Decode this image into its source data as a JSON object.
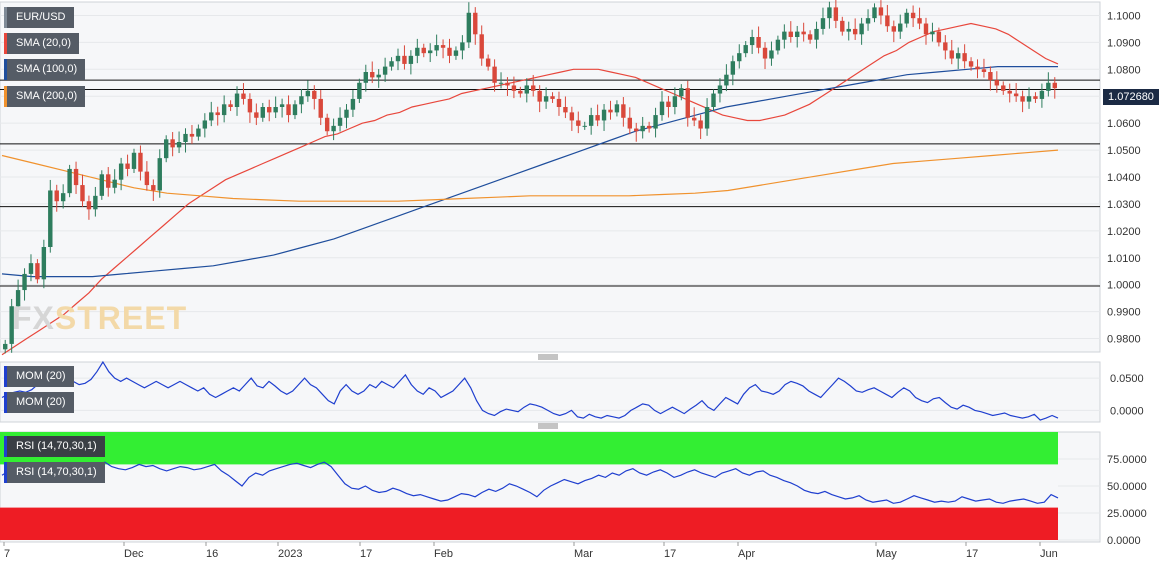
{
  "legends": {
    "pair": "EUR/USD",
    "sma20": "SMA (20,0)",
    "sma100": "SMA (100,0)",
    "sma200": "SMA (200,0)",
    "mom1": "MOM (20)",
    "mom2": "MOM (20)",
    "rsi1": "RSI (14,70,30,1)",
    "rsi2": "RSI (14,70,30,1)"
  },
  "price_tag": "1.072680",
  "logo": {
    "fx": "FX",
    "street": "STREET"
  },
  "colors": {
    "up": "#2e7d5e",
    "down": "#d9483b",
    "sma20": "#e8473c",
    "sma100": "#1f4e9c",
    "sma200": "#f0922e",
    "mom": "#1f3fcf",
    "rsi": "#1f3fcf",
    "rsi_over": "#33ee33",
    "rsi_under": "#ee1c24"
  },
  "chart_data": [
    {
      "type": "candlestick",
      "title": "EUR/USD",
      "y_ticks": [
        "1.1000",
        "1.0900",
        "1.0800",
        "1.0700",
        "1.0600",
        "1.0500",
        "1.0400",
        "1.0300",
        "1.0200",
        "1.0100",
        "1.0000",
        "0.9900",
        "0.9800"
      ],
      "ylim": [
        0.975,
        1.105
      ],
      "x_tick_labels": [
        "7",
        "Dec",
        "16",
        "2023",
        "17",
        "Feb",
        "Mar",
        "17",
        "Apr",
        "May",
        "17",
        "Jun"
      ],
      "horizontal_levels": [
        1.076,
        1.0725,
        1.0523,
        1.029,
        0.9995
      ],
      "closes": [
        0.978,
        0.992,
        0.998,
        1.004,
        1.008,
        1.002,
        1.014,
        1.035,
        1.031,
        1.034,
        1.043,
        1.037,
        1.031,
        1.028,
        1.033,
        1.041,
        1.036,
        1.039,
        1.045,
        1.043,
        1.049,
        1.042,
        1.037,
        1.035,
        1.047,
        1.054,
        1.051,
        1.053,
        1.056,
        1.055,
        1.058,
        1.061,
        1.064,
        1.063,
        1.067,
        1.066,
        1.071,
        1.069,
        1.064,
        1.062,
        1.066,
        1.064,
        1.066,
        1.067,
        1.063,
        1.067,
        1.07,
        1.072,
        1.069,
        1.062,
        1.057,
        1.059,
        1.062,
        1.065,
        1.069,
        1.075,
        1.079,
        1.077,
        1.078,
        1.081,
        1.083,
        1.085,
        1.082,
        1.085,
        1.088,
        1.086,
        1.087,
        1.089,
        1.088,
        1.085,
        1.087,
        1.09,
        1.101,
        1.093,
        1.084,
        1.081,
        1.075,
        1.075,
        1.074,
        1.072,
        1.071,
        1.074,
        1.072,
        1.068,
        1.07,
        1.069,
        1.066,
        1.064,
        1.061,
        1.059,
        1.059,
        1.063,
        1.061,
        1.065,
        1.064,
        1.067,
        1.062,
        1.058,
        1.057,
        1.059,
        1.058,
        1.063,
        1.068,
        1.066,
        1.07,
        1.073,
        1.062,
        1.061,
        1.058,
        1.066,
        1.071,
        1.074,
        1.078,
        1.083,
        1.086,
        1.089,
        1.092,
        1.088,
        1.084,
        1.087,
        1.091,
        1.094,
        1.092,
        1.094,
        1.093,
        1.091,
        1.095,
        1.099,
        1.103,
        1.098,
        1.094,
        1.095,
        1.093,
        1.097,
        1.099,
        1.103,
        1.1,
        1.096,
        1.094,
        1.097,
        1.101,
        1.099,
        1.097,
        1.093,
        1.094,
        1.09,
        1.087,
        1.084,
        1.086,
        1.083,
        1.081,
        1.08,
        1.079,
        1.076,
        1.074,
        1.072,
        1.071,
        1.07,
        1.068,
        1.07,
        1.069,
        1.072,
        1.075,
        1.073
      ],
      "sma20": [
        0.974,
        0.977,
        0.98,
        0.983,
        0.986,
        0.989,
        0.993,
        0.997,
        1.002,
        1.006,
        1.01,
        1.014,
        1.018,
        1.022,
        1.026,
        1.03,
        1.033,
        1.036,
        1.039,
        1.041,
        1.043,
        1.045,
        1.047,
        1.049,
        1.051,
        1.053,
        1.055,
        1.056,
        1.058,
        1.06,
        1.061,
        1.063,
        1.064,
        1.066,
        1.067,
        1.068,
        1.069,
        1.071,
        1.072,
        1.073,
        1.074,
        1.075,
        1.076,
        1.077,
        1.078,
        1.079,
        1.08,
        1.08,
        1.08,
        1.079,
        1.078,
        1.077,
        1.075,
        1.073,
        1.071,
        1.069,
        1.067,
        1.065,
        1.063,
        1.062,
        1.061,
        1.061,
        1.062,
        1.063,
        1.065,
        1.067,
        1.07,
        1.073,
        1.076,
        1.079,
        1.082,
        1.085,
        1.087,
        1.09,
        1.092,
        1.094,
        1.095,
        1.096,
        1.097,
        1.096,
        1.095,
        1.093,
        1.09,
        1.087,
        1.084,
        1.082
      ],
      "sma100": [
        1.004,
        1.003,
        1.003,
        1.003,
        1.004,
        1.005,
        1.006,
        1.007,
        1.009,
        1.011,
        1.014,
        1.017,
        1.021,
        1.025,
        1.029,
        1.033,
        1.037,
        1.041,
        1.045,
        1.049,
        1.053,
        1.057,
        1.06,
        1.063,
        1.066,
        1.068,
        1.07,
        1.072,
        1.074,
        1.076,
        1.078,
        1.079,
        1.08,
        1.081,
        1.081,
        1.081
      ],
      "sma200": [
        1.048,
        1.045,
        1.042,
        1.039,
        1.036,
        1.034,
        1.033,
        1.032,
        1.0315,
        1.031,
        1.031,
        1.031,
        1.031,
        1.0315,
        1.032,
        1.0325,
        1.033,
        1.033,
        1.033,
        1.033,
        1.0335,
        1.034,
        1.035,
        1.037,
        1.039,
        1.041,
        1.043,
        1.045,
        1.046,
        1.047,
        1.048,
        1.049,
        1.05
      ]
    },
    {
      "type": "line",
      "title": "MOM (20)",
      "y_ticks": [
        "0.0500",
        "0.0000"
      ],
      "ylim": [
        -0.018,
        0.075
      ],
      "values": [
        0.02,
        0.025,
        0.028,
        0.03,
        0.028,
        0.032,
        0.04,
        0.05,
        0.045,
        0.04,
        0.048,
        0.052,
        0.045,
        0.04,
        0.042,
        0.048,
        0.06,
        0.075,
        0.06,
        0.05,
        0.045,
        0.05,
        0.045,
        0.04,
        0.035,
        0.04,
        0.045,
        0.04,
        0.035,
        0.04,
        0.045,
        0.04,
        0.035,
        0.03,
        0.035,
        0.025,
        0.02,
        0.025,
        0.03,
        0.035,
        0.03,
        0.04,
        0.05,
        0.038,
        0.035,
        0.045,
        0.038,
        0.03,
        0.025,
        0.03,
        0.04,
        0.05,
        0.04,
        0.035,
        0.025,
        0.015,
        0.01,
        0.03,
        0.04,
        0.03,
        0.025,
        0.03,
        0.04,
        0.035,
        0.045,
        0.04,
        0.035,
        0.045,
        0.055,
        0.04,
        0.03,
        0.025,
        0.035,
        0.03,
        0.02,
        0.025,
        0.03,
        0.04,
        0.05,
        0.035,
        0.015,
        0.0,
        -0.005,
        -0.008,
        -0.002,
        0.002,
        0.0,
        -0.002,
        0.005,
        0.01,
        0.008,
        0.005,
        0.0,
        -0.005,
        -0.008,
        -0.005,
        0.0,
        -0.01,
        -0.012,
        -0.006,
        -0.01,
        -0.012,
        -0.008,
        -0.01,
        -0.012,
        -0.008,
        0.0,
        0.005,
        0.01,
        0.008,
        0.0,
        -0.005,
        0.0,
        0.005,
        0.0,
        -0.005,
        0.002,
        0.008,
        0.015,
        0.005,
        0.0,
        0.01,
        0.02,
        0.015,
        0.01,
        0.025,
        0.035,
        0.04,
        0.03,
        0.028,
        0.025,
        0.03,
        0.04,
        0.045,
        0.042,
        0.038,
        0.03,
        0.025,
        0.02,
        0.03,
        0.04,
        0.05,
        0.045,
        0.038,
        0.03,
        0.028,
        0.032,
        0.035,
        0.03,
        0.025,
        0.02,
        0.028,
        0.035,
        0.03,
        0.02,
        0.015,
        0.012,
        0.018,
        0.02,
        0.012,
        0.005,
        0.002,
        0.008,
        0.005,
        0.0,
        -0.002,
        -0.005,
        -0.008,
        -0.006,
        -0.004,
        -0.008,
        -0.01,
        -0.012,
        -0.01,
        -0.006,
        -0.015,
        -0.012,
        -0.008,
        -0.012
      ]
    },
    {
      "type": "line",
      "title": "RSI (14,70,30,1)",
      "y_ticks": [
        "75.0000",
        "50.0000",
        "25.0000",
        "0.0000"
      ],
      "ylim": [
        0,
        100
      ],
      "overbought": 70,
      "oversold": 30,
      "values": [
        60,
        64,
        66,
        62,
        68,
        70,
        67,
        64,
        68,
        70,
        66,
        62,
        65,
        68,
        70,
        72,
        68,
        66,
        65,
        67,
        70,
        68,
        69,
        66,
        64,
        66,
        68,
        67,
        65,
        66,
        68,
        70,
        64,
        60,
        55,
        50,
        58,
        62,
        60,
        64,
        66,
        68,
        70,
        71,
        69,
        67,
        70,
        72,
        68,
        60,
        52,
        48,
        47,
        50,
        46,
        44,
        45,
        48,
        46,
        43,
        41,
        42,
        40,
        38,
        36,
        37,
        40,
        43,
        42,
        40,
        44,
        47,
        45,
        48,
        52,
        50,
        47,
        44,
        40,
        46,
        50,
        53,
        56,
        54,
        52,
        55,
        57,
        60,
        58,
        62,
        60,
        64,
        66,
        62,
        60,
        63,
        65,
        62,
        58,
        60,
        63,
        65,
        62,
        60,
        58,
        62,
        64,
        66,
        62,
        60,
        63,
        64,
        60,
        58,
        55,
        53,
        50,
        46,
        44,
        43,
        45,
        42,
        40,
        38,
        39,
        41,
        37,
        35,
        36,
        37,
        34,
        35,
        38,
        41,
        39,
        37,
        35,
        36,
        35,
        36,
        40,
        38,
        36,
        37,
        38,
        35,
        34,
        36,
        37,
        38,
        36,
        34,
        35,
        42,
        39
      ]
    }
  ]
}
